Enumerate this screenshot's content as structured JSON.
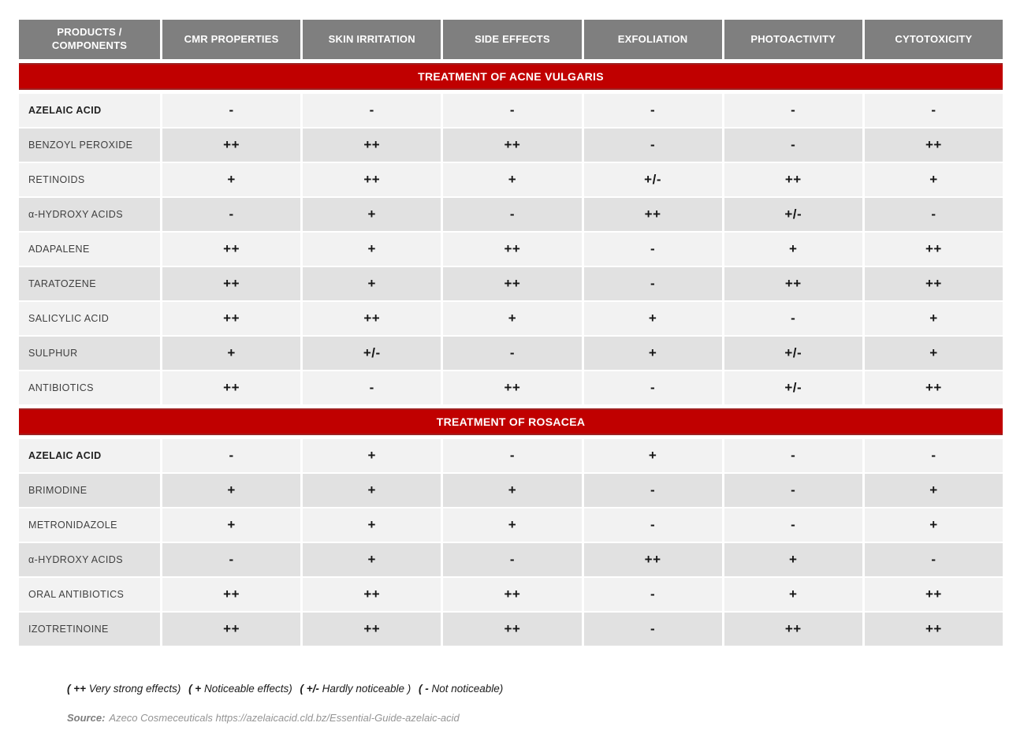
{
  "chart_data": {
    "type": "table",
    "columns": [
      "PRODUCTS / COMPONENTS",
      "CMR PROPERTIES",
      "SKIN IRRITATION",
      "SIDE EFFECTS",
      "EXFOLIATION",
      "PHOTOACTIVITY",
      "CYTOTOXICITY"
    ],
    "sections": [
      {
        "header": "TREATMENT OF ACNE VULGARIS",
        "rows": [
          {
            "label": "AZELAIC ACID",
            "bold": true,
            "values": [
              "-",
              "-",
              "-",
              "-",
              "-",
              "-"
            ]
          },
          {
            "label": "BENZOYL PEROXIDE",
            "bold": false,
            "values": [
              "++",
              "++",
              "++",
              "-",
              "-",
              "++"
            ]
          },
          {
            "label": "RETINOIDS",
            "bold": false,
            "values": [
              "+",
              "++",
              "+",
              "+/-",
              "++",
              "+"
            ]
          },
          {
            "label": "α-HYDROXY ACIDS",
            "bold": false,
            "values": [
              "-",
              "+",
              "-",
              "++",
              "+/-",
              "-"
            ]
          },
          {
            "label": "ADAPALENE",
            "bold": false,
            "values": [
              "++",
              "+",
              "++",
              "-",
              "+",
              "++"
            ]
          },
          {
            "label": "TARATOZENE",
            "bold": false,
            "values": [
              "++",
              "+",
              "++",
              "-",
              "++",
              "++"
            ]
          },
          {
            "label": "SALICYLIC ACID",
            "bold": false,
            "values": [
              "++",
              "++",
              "+",
              "+",
              "-",
              "+"
            ]
          },
          {
            "label": "SULPHUR",
            "bold": false,
            "values": [
              "+",
              "+/-",
              "-",
              "+",
              "+/-",
              "+"
            ]
          },
          {
            "label": "ANTIBIOTICS",
            "bold": false,
            "values": [
              "++",
              "-",
              "++",
              "-",
              "+/-",
              "++"
            ]
          }
        ]
      },
      {
        "header": "TREATMENT OF ROSACEA",
        "rows": [
          {
            "label": "AZELAIC ACID",
            "bold": true,
            "values": [
              "-",
              "+",
              "-",
              "+",
              "-",
              "-"
            ]
          },
          {
            "label": "BRIMODINE",
            "bold": false,
            "values": [
              "+",
              "+",
              "+",
              "-",
              "-",
              "+"
            ]
          },
          {
            "label": "METRONIDAZOLE",
            "bold": false,
            "values": [
              "+",
              "+",
              "+",
              "-",
              "-",
              "+"
            ]
          },
          {
            "label": "α-HYDROXY ACIDS",
            "bold": false,
            "values": [
              "-",
              "+",
              "-",
              "++",
              "+",
              "-"
            ]
          },
          {
            "label": "ORAL ANTIBIOTICS",
            "bold": false,
            "values": [
              "++",
              "++",
              "++",
              "-",
              "+",
              "++"
            ]
          },
          {
            "label": "IZOTRETINOINE",
            "bold": false,
            "values": [
              "++",
              "++",
              "++",
              "-",
              "++",
              "++"
            ]
          }
        ]
      }
    ],
    "legend_text": "( ++ Very strong effects) ( + Noticeable effects) ( +/- Hardly noticeable ) ( - Not noticeable)",
    "source_text": "Source: Azeco Cosmeceuticals https://azelaicacid.cld.bz/Essential-Guide-azelaic-acid"
  },
  "legend": {
    "items": [
      {
        "symbol": "( ++",
        "label": " Very strong effects)"
      },
      {
        "symbol": "( +",
        "label": " Noticeable effects)"
      },
      {
        "symbol": "( +/-",
        "label": " Hardly noticeable )"
      },
      {
        "symbol": "( -",
        "label": " Not noticeable)"
      }
    ]
  },
  "source": {
    "prefix": "Source:",
    "text": "Azeco Cosmeceuticals https://azelaicacid.cld.bz/Essential-Guide-azelaic-acid"
  },
  "colors": {
    "header_bg": "#7f7f7f",
    "banner_bg": "#c00000",
    "banner_border": "#9e2121",
    "row_light": "#f2f2f2",
    "row_dark": "#e1e1e1",
    "symbol": "#161616",
    "label": "#3f3f3f",
    "source": "#949494"
  }
}
